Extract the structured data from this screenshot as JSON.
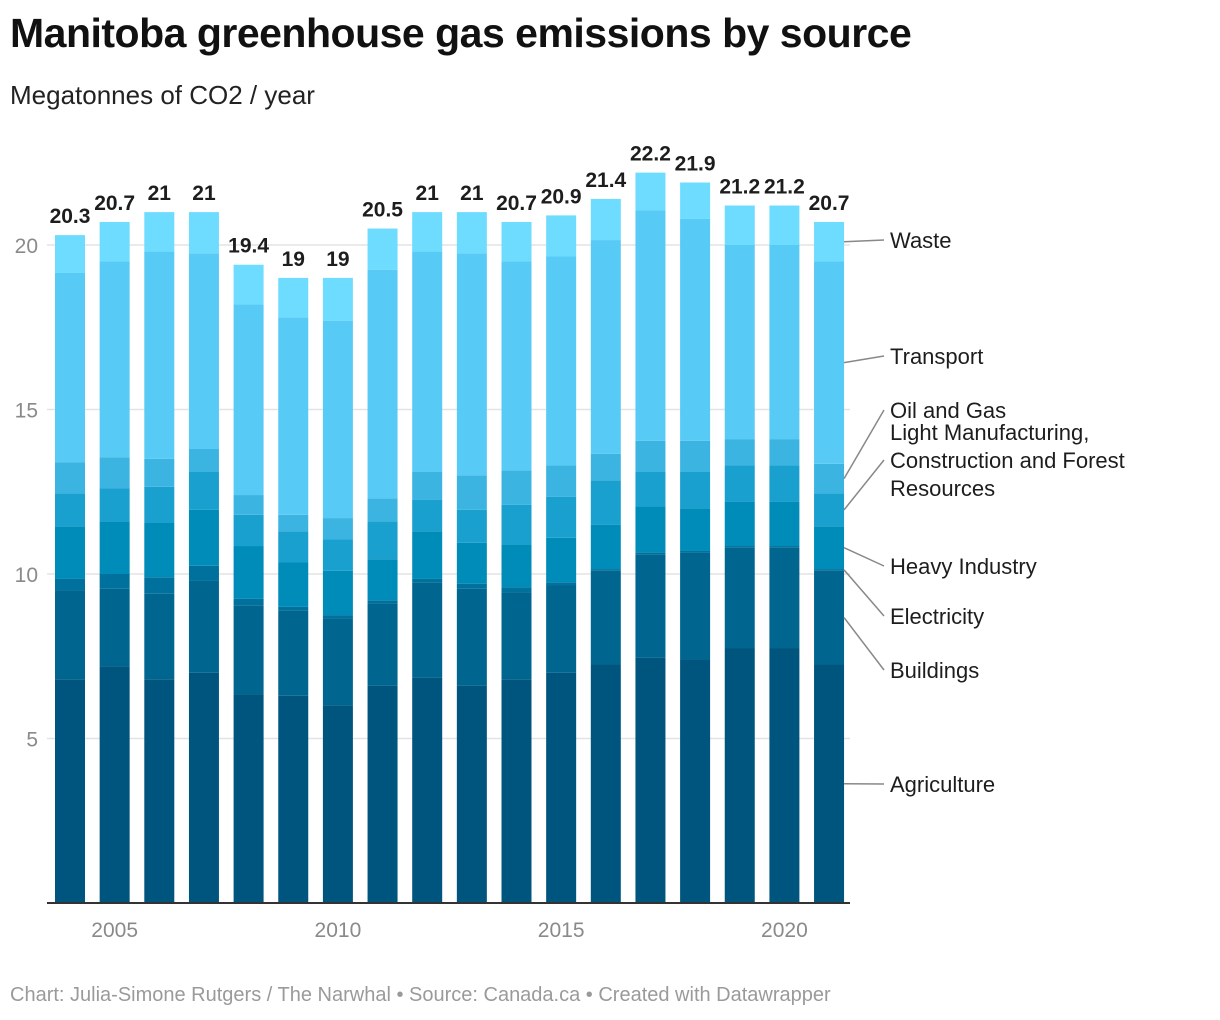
{
  "title": "Manitoba greenhouse gas emissions by source",
  "subtitle": "Megatonnes of CO2 / year",
  "footer": "Chart: Julia-Simone Rutgers / The Narwhal • Source: Canada.ca • Created with Datawrapper",
  "chart_data": {
    "type": "bar",
    "stacked": true,
    "title": "Manitoba greenhouse gas emissions by source",
    "ylabel": "Megatonnes of CO2 / year",
    "ylim": [
      0,
      22.2
    ],
    "yticks": [
      5,
      10,
      15,
      20
    ],
    "xticks": [
      "2005",
      "2010",
      "2015",
      "2020"
    ],
    "grid": true,
    "legend_placement": "right (direct labels)",
    "categories": [
      2004,
      2005,
      2006,
      2007,
      2008,
      2009,
      2010,
      2011,
      2012,
      2013,
      2014,
      2015,
      2016,
      2017,
      2018,
      2019,
      2020,
      2021
    ],
    "totals": [
      "20.3",
      "20.7",
      "21",
      "21",
      "19.4",
      "19",
      "19",
      "20.5",
      "21",
      "21",
      "20.7",
      "20.9",
      "21.4",
      "22.2",
      "21.9",
      "21.2",
      "21.2",
      "20.7"
    ],
    "series": [
      {
        "name": "Agriculture",
        "color": "#00557e",
        "values": [
          6.8,
          7.2,
          6.8,
          7.0,
          6.35,
          6.3,
          6.0,
          6.6,
          6.85,
          6.6,
          6.8,
          7.0,
          7.25,
          7.45,
          7.4,
          7.75,
          7.75,
          7.25
        ]
      },
      {
        "name": "Buildings",
        "color": "#00668f",
        "values": [
          2.7,
          2.35,
          2.6,
          2.8,
          2.7,
          2.6,
          2.65,
          2.5,
          2.9,
          2.95,
          2.65,
          2.65,
          2.85,
          3.15,
          3.25,
          3.05,
          3.05,
          2.85
        ]
      },
      {
        "name": "Electricity",
        "color": "#00709c",
        "values": [
          0.35,
          0.45,
          0.5,
          0.45,
          0.2,
          0.1,
          0.1,
          0.1,
          0.1,
          0.15,
          0.15,
          0.1,
          0.05,
          0.05,
          0.05,
          0.05,
          0.05,
          0.05
        ]
      },
      {
        "name": "Heavy Industry",
        "color": "#008cb9",
        "values": [
          1.6,
          1.6,
          1.65,
          1.7,
          1.6,
          1.35,
          1.35,
          1.25,
          1.45,
          1.25,
          1.3,
          1.35,
          1.35,
          1.4,
          1.3,
          1.35,
          1.35,
          1.3
        ]
      },
      {
        "name": "Light Manufacturing, Construction and Forest Resources",
        "color": "#19a0cf",
        "values": [
          1.0,
          1.0,
          1.1,
          1.15,
          0.95,
          0.95,
          0.95,
          1.15,
          0.95,
          1.0,
          1.2,
          1.25,
          1.35,
          1.05,
          1.1,
          1.1,
          1.1,
          1.0
        ]
      },
      {
        "name": "Oil and Gas",
        "color": "#3cb4e2",
        "values": [
          0.95,
          0.95,
          0.85,
          0.7,
          0.6,
          0.5,
          0.65,
          0.7,
          0.85,
          1.05,
          1.05,
          0.95,
          0.8,
          0.95,
          0.95,
          0.8,
          0.8,
          0.9
        ]
      },
      {
        "name": "Transport",
        "color": "#58caf6",
        "values": [
          5.75,
          5.95,
          6.3,
          5.95,
          5.8,
          6.0,
          6.0,
          6.95,
          6.7,
          6.75,
          6.35,
          6.35,
          6.5,
          7.0,
          6.75,
          5.9,
          5.9,
          6.15
        ]
      },
      {
        "name": "Waste",
        "color": "#6edcfe",
        "values": [
          1.15,
          1.2,
          1.2,
          1.25,
          1.2,
          1.2,
          1.3,
          1.25,
          1.2,
          1.25,
          1.2,
          1.25,
          1.25,
          1.15,
          1.1,
          1.2,
          1.2,
          1.2
        ]
      }
    ]
  }
}
